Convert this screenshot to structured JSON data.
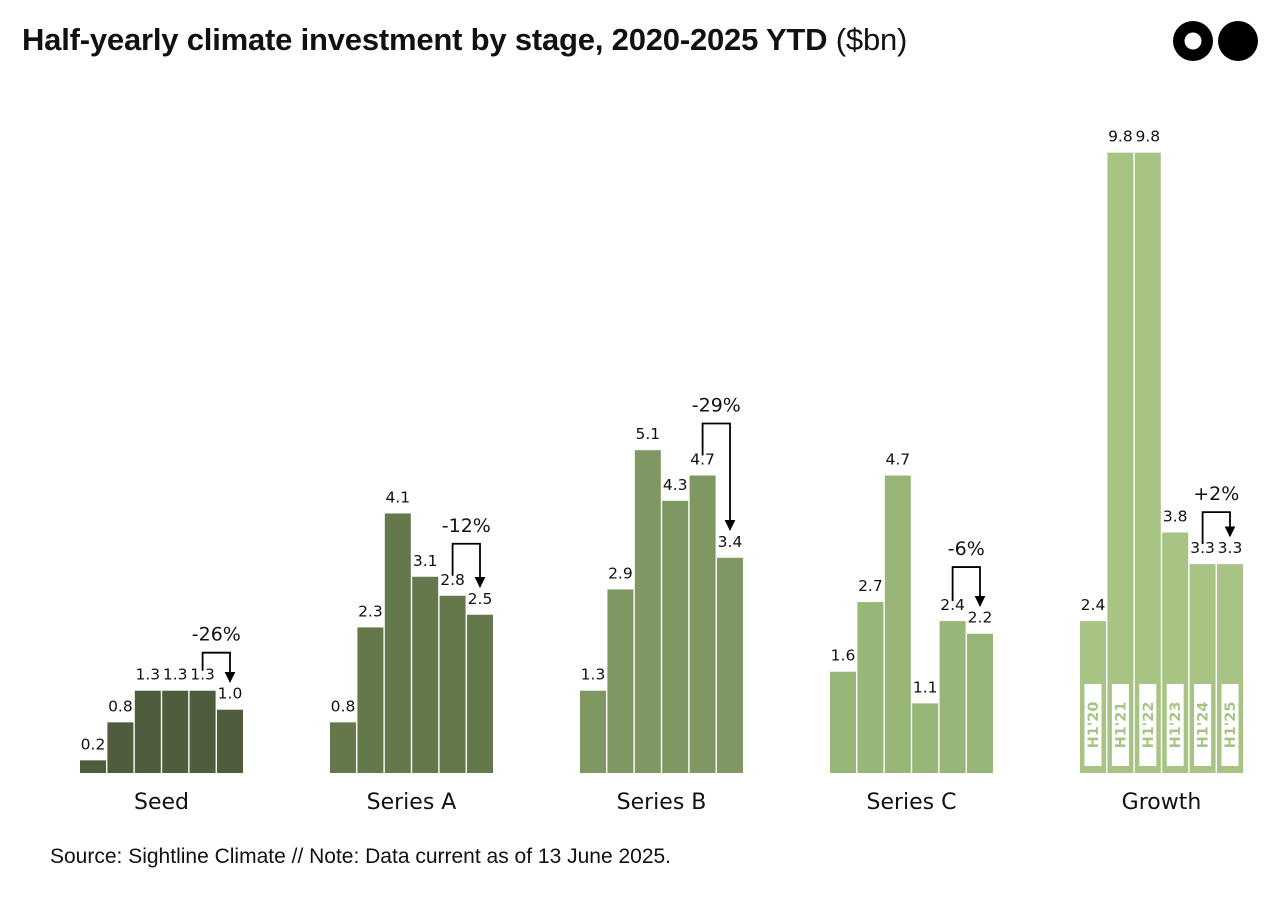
{
  "header": {
    "title": "Half-yearly climate investment by stage, 2020-2025 YTD",
    "unit": "($bn)"
  },
  "footer": {
    "source": "Source: Sightline Climate  //  Note: Data current as of 13 June 2025."
  },
  "colors": {
    "seed": "#4e5d3b",
    "series_a": "#65784b",
    "series_b": "#7f9862",
    "series_c": "#98b677",
    "growth": "#a8c484"
  },
  "chart_data": {
    "type": "bar",
    "unit": "$bn",
    "ylim": [
      0,
      10.2
    ],
    "period_labels": [
      "H1'20",
      "H1'21",
      "H1'22",
      "H1'23",
      "H1'24",
      "H1'25"
    ],
    "groups": [
      {
        "name": "Seed",
        "values": [
          0.2,
          0.8,
          1.3,
          1.3,
          1.3,
          1.0
        ],
        "labels": [
          "0.2",
          "0.8",
          "1.3",
          "1.3",
          "1.3",
          "1.0"
        ],
        "change": "-26%"
      },
      {
        "name": "Series A",
        "values": [
          0.8,
          2.3,
          4.1,
          3.1,
          2.8,
          2.5
        ],
        "labels": [
          "0.8",
          "2.3",
          "4.1",
          "3.1",
          "2.8",
          "2.5"
        ],
        "change": "-12%"
      },
      {
        "name": "Series B",
        "values": [
          1.3,
          2.9,
          5.1,
          4.3,
          4.7,
          3.4
        ],
        "labels": [
          "1.3",
          "2.9",
          "5.1",
          "4.3",
          "4.7",
          "3.4"
        ],
        "change": "-29%"
      },
      {
        "name": "Series C",
        "values": [
          1.6,
          2.7,
          4.7,
          1.1,
          2.4,
          2.2
        ],
        "labels": [
          "1.6",
          "2.7",
          "4.7",
          "1.1",
          "2.4",
          "2.2"
        ],
        "change": "-6%"
      },
      {
        "name": "Growth",
        "values": [
          2.4,
          9.8,
          9.8,
          3.8,
          3.3,
          3.3
        ],
        "labels": [
          "2.4",
          "9.8",
          "9.8",
          "3.8",
          "3.3",
          "3.3"
        ],
        "change": "+2%"
      }
    ],
    "grid": false,
    "legend": "none"
  }
}
